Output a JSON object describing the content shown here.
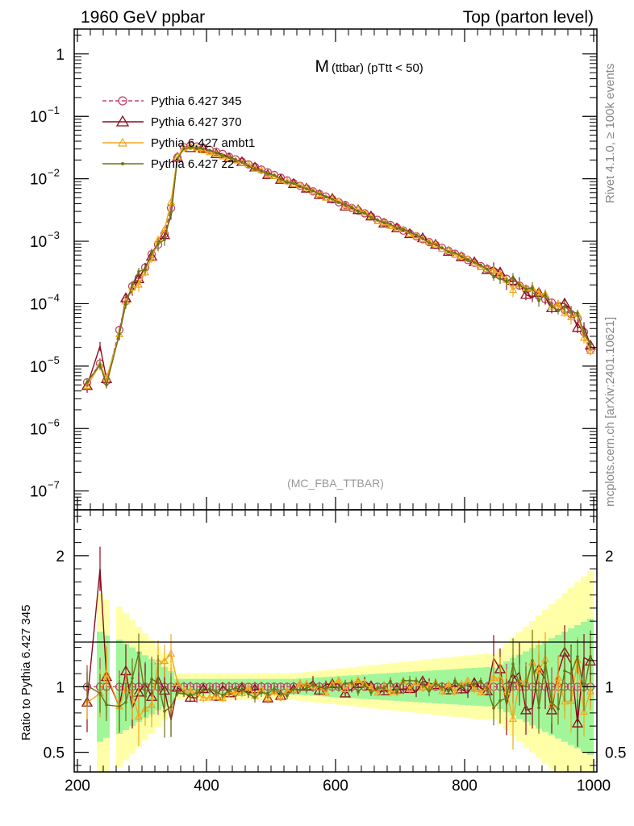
{
  "header": {
    "left": "1960 GeV ppbar",
    "right": "Top (parton level)"
  },
  "side_labels": {
    "rivet": "Rivet 4.1.0, ≥ 100k events",
    "mcplots": "mcplots.cern.ch [arXiv:2401.10621]"
  },
  "chart_data": {
    "type": "line",
    "title_main": "M",
    "title_sub": "(ttbar) (pTtt < 50)",
    "reference_label": "(MC_FBA_TTBAR)",
    "xlabel": "",
    "ylabel": "",
    "xlim": [
      195,
      1005
    ],
    "ylim_log": [
      5e-08,
      2.5
    ],
    "x_ticks": [
      200,
      400,
      600,
      800,
      1000
    ],
    "x_tick_labels": [
      "200",
      "400",
      "600",
      "800",
      "1000"
    ],
    "y_decades": [
      0,
      -1,
      -2,
      -3,
      -4,
      -5,
      -6,
      -7
    ],
    "y_tick_labels": [
      "1",
      "10",
      "10",
      "10",
      "10",
      "10",
      "10",
      "10"
    ],
    "y_tick_exponents": [
      "",
      "−1",
      "−2",
      "−3",
      "−4",
      "−5",
      "−6",
      "−7"
    ],
    "ratio": {
      "ylabel": "Ratio to Pythia 6.427 345",
      "ylim": [
        0.35,
        2.35
      ],
      "ticks": [
        0.5,
        1,
        2
      ],
      "tick_labels": [
        "0.5",
        "1",
        "2"
      ]
    },
    "legend_position": "top-left",
    "shape": {
      "x": [
        215,
        235,
        245,
        265,
        275,
        285,
        295,
        305,
        315,
        325,
        335,
        345,
        355,
        365,
        375,
        385,
        395,
        405,
        415,
        425,
        435,
        445,
        455,
        465,
        475,
        485,
        495,
        505,
        515,
        525,
        535,
        545,
        555,
        565,
        575,
        585,
        595,
        605,
        615,
        625,
        635,
        645,
        655,
        665,
        675,
        685,
        695,
        705,
        715,
        725,
        735,
        745,
        755,
        765,
        775,
        785,
        795,
        805,
        815,
        825,
        835,
        845,
        855,
        865,
        875,
        885,
        895,
        905,
        915,
        925,
        935,
        945,
        955,
        965,
        975,
        985,
        995
      ],
      "y": [
        5.5e-06,
        1.1e-05,
        5.8e-06,
        3.8e-05,
        0.00011,
        0.00019,
        0.00026,
        0.00038,
        0.00062,
        0.00088,
        0.0013,
        0.0034,
        0.022,
        0.032,
        0.034,
        0.033,
        0.031,
        0.029,
        0.027,
        0.025,
        0.0225,
        0.0205,
        0.0188,
        0.017,
        0.0155,
        0.014,
        0.0127,
        0.0115,
        0.0104,
        0.0094,
        0.0085,
        0.0077,
        0.007,
        0.0063,
        0.0057,
        0.0052,
        0.0047,
        0.0042,
        0.0038,
        0.0034,
        0.0031,
        0.0028,
        0.0025,
        0.0022,
        0.002,
        0.00182,
        0.00165,
        0.00148,
        0.00133,
        0.0012,
        0.00108,
        0.00097,
        0.00087,
        0.00078,
        0.0007,
        0.00063,
        0.00057,
        0.0005,
        0.00045,
        0.0004,
        0.00036,
        0.00032,
        0.00028,
        0.00025,
        0.00022,
        0.000195,
        0.00017,
        0.00015,
        0.000133,
        0.000118,
        0.000104,
        9.2e-05,
        8e-05,
        6.8e-05,
        5.7e-05,
        3.5e-05,
        1.8e-05
      ]
    },
    "series": [
      {
        "name": "Pythia 6.427 345",
        "color": "#c0436a",
        "marker": "circle",
        "dash": "5,3"
      },
      {
        "name": "Pythia 6.427 370",
        "color": "#8b0d1c",
        "marker": "triangle",
        "dash": ""
      },
      {
        "name": "Pythia 6.427 ambt1",
        "color": "#f2a71d",
        "marker": "triangle-small",
        "dash": ""
      },
      {
        "name": "Pythia 6.427 z2",
        "color": "#6b7417",
        "marker": "dot",
        "dash": ""
      }
    ]
  }
}
